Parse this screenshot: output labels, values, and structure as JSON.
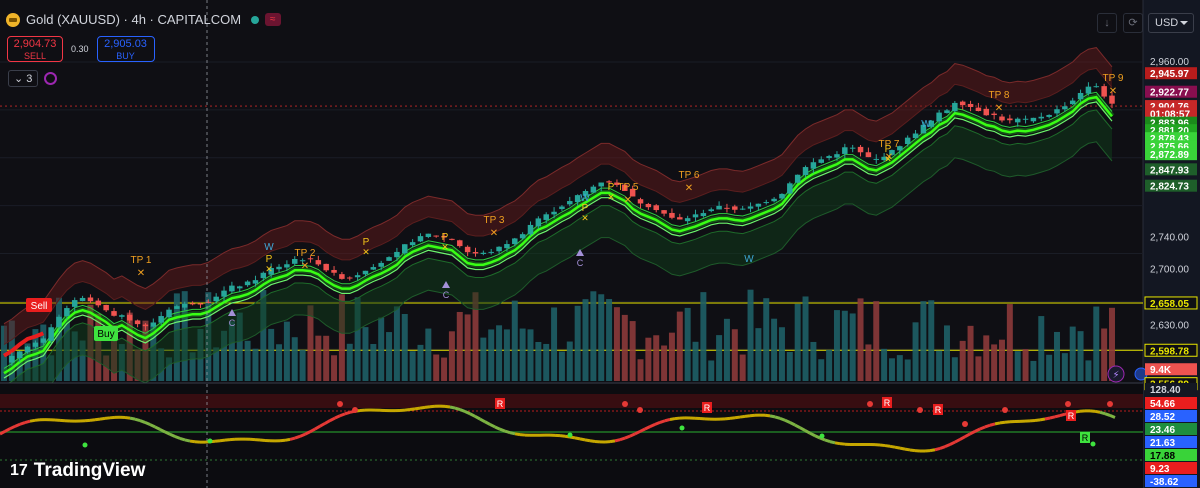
{
  "header": {
    "title": "Gold (XAUUSD) · 4h · CAPITALCOM"
  },
  "trade": {
    "sell_price": "2,904.73",
    "sell_label": "SELL",
    "spread": "0.30",
    "buy_price": "2,905.03",
    "buy_label": "BUY"
  },
  "indicators": {
    "count": "3"
  },
  "currency": "USD",
  "brand": "TradingView",
  "colors": {
    "up": "#26a69a",
    "down": "#ef5350",
    "band": "#39ff14",
    "tp": "#f0a020",
    "sell": "#e91e1e",
    "buy": "#3ee33e",
    "level": "#e8e600"
  },
  "price_axis": {
    "ticks": [
      {
        "label": "2,960.00",
        "v": 2960
      },
      {
        "label": "2,740.00",
        "v": 2740
      },
      {
        "label": "2,700.00",
        "v": 2700
      },
      {
        "label": "2,630.00",
        "v": 2630
      }
    ],
    "tags": [
      {
        "label": "2,945.97",
        "v": 2945.97,
        "bg": "#b71c1c"
      },
      {
        "label": "2,922.77",
        "v": 2922.77,
        "bg": "#880e4f"
      },
      {
        "label": "2,904.76",
        "v": 2904.76,
        "bg": "#c62828"
      },
      {
        "label": "01:08:57",
        "v": 2895.5,
        "bg": "#c62828"
      },
      {
        "label": "2,883.96",
        "v": 2883.96,
        "bg": "#1b8a1b"
      },
      {
        "label": "2,881.20",
        "v": 2874.5,
        "bg": "#21a621"
      },
      {
        "label": "2,878.43",
        "v": 2864.5,
        "bg": "#39d339"
      },
      {
        "label": "2,875.66",
        "v": 2854.5,
        "bg": "#39d339"
      },
      {
        "label": "2,872.89",
        "v": 2844.5,
        "bg": "#39d339"
      },
      {
        "label": "2,847.93",
        "v": 2825.5,
        "bg": "#1e5e2a"
      },
      {
        "label": "2,824.73",
        "v": 2805,
        "bg": "#1e5e2a"
      },
      {
        "label": "2,658.05",
        "v": 2658.05,
        "bg": "#0f0f14",
        "fg": "#e8e600",
        "border": "#e8e600"
      },
      {
        "label": "2,598.78",
        "v": 2598.78,
        "bg": "#0f0f14",
        "fg": "#e8e600",
        "border": "#e8e600"
      },
      {
        "label": "9.4K",
        "v": 2575,
        "bg": "#ef5350"
      },
      {
        "label": "2,556.89",
        "v": 2556.89,
        "bg": "#0f0f14",
        "fg": "#e8e600",
        "border": "#e8e600"
      }
    ]
  },
  "osc_axis": [
    {
      "label": "128.40",
      "y": 389,
      "bg": "#131722",
      "fg": "#d1d4dc"
    },
    {
      "label": "54.66",
      "y": 403,
      "bg": "#e91e1e",
      "fg": "#fff"
    },
    {
      "label": "28.52",
      "y": 416,
      "bg": "#2962ff",
      "fg": "#fff"
    },
    {
      "label": "23.46",
      "y": 429,
      "bg": "#1e8e3e",
      "fg": "#fff"
    },
    {
      "label": "21.63",
      "y": 442,
      "bg": "#2962ff",
      "fg": "#fff"
    },
    {
      "label": "17.88",
      "y": 455,
      "bg": "#39d339",
      "fg": "#000"
    },
    {
      "label": "9.23",
      "y": 468,
      "bg": "#e91e1e",
      "fg": "#fff"
    },
    {
      "label": "-38.62",
      "y": 481,
      "bg": "#2962ff",
      "fg": "#fff"
    }
  ],
  "tp_labels": [
    "TP 1",
    "TP 2",
    "TP 3",
    "TP 5",
    "TP 6",
    "TP 7",
    "TP 8",
    "TP 9"
  ],
  "signals": {
    "sell": "Sell",
    "buy": "Buy",
    "p": "P",
    "w": "W",
    "c": "C",
    "r": "R"
  },
  "candles_path": [
    2584,
    2590,
    2598,
    2605,
    2608,
    2612,
    2626,
    2640,
    2652,
    2660,
    2663,
    2660,
    2654,
    2648,
    2640,
    2644,
    2638,
    2632,
    2628,
    2634,
    2642,
    2651,
    2654,
    2656,
    2658,
    2658,
    2661,
    2667,
    2673,
    2678,
    2680,
    2683,
    2688,
    2695,
    2701,
    2704,
    2707,
    2713,
    2713,
    2712,
    2708,
    2700,
    2694,
    2690,
    2690,
    2694,
    2700,
    2705,
    2709,
    2714,
    2720,
    2730,
    2736,
    2740,
    2744,
    2742,
    2740,
    2738,
    2730,
    2722,
    2720,
    2720,
    2723,
    2727,
    2733,
    2738,
    2746,
    2756,
    2764,
    2768,
    2774,
    2780,
    2785,
    2792,
    2798,
    2804,
    2810,
    2810,
    2805,
    2800,
    2790,
    2784,
    2780,
    2776,
    2770,
    2764,
    2762,
    2765,
    2768,
    2772,
    2776,
    2778,
    2778,
    2776,
    2775,
    2778,
    2782,
    2786,
    2790,
    2796,
    2808,
    2820,
    2828,
    2834,
    2838,
    2842,
    2846,
    2852,
    2852,
    2846,
    2840,
    2838,
    2843,
    2848,
    2856,
    2864,
    2872,
    2880,
    2886,
    2895,
    2900,
    2910,
    2908,
    2904,
    2900,
    2895,
    2893,
    2888,
    2886,
    2888,
    2887,
    2889,
    2892,
    2895,
    2900,
    2906,
    2912,
    2922,
    2928,
    2930,
    2918,
    2906
  ]
}
